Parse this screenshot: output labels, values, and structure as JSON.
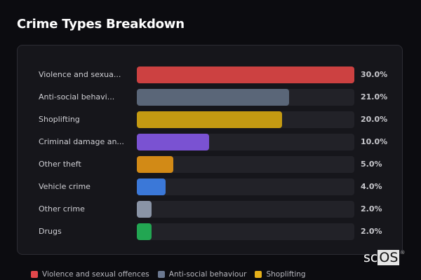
{
  "title": "Crime Types Breakdown",
  "rows": [
    {
      "label": "Violence and sexua...",
      "pct": "30.0%",
      "value": 30.0,
      "color": "#cc4141"
    },
    {
      "label": "Anti-social behavi...",
      "pct": "21.0%",
      "value": 21.0,
      "color": "#5a6678"
    },
    {
      "label": "Shoplifting",
      "pct": "20.0%",
      "value": 20.0,
      "color": "#c49a12"
    },
    {
      "label": "Criminal damage an...",
      "pct": "10.0%",
      "value": 10.0,
      "color": "#7a52d2"
    },
    {
      "label": "Other theft",
      "pct": "5.0%",
      "value": 5.0,
      "color": "#d28a16"
    },
    {
      "label": "Vehicle crime",
      "pct": "4.0%",
      "value": 4.0,
      "color": "#3b78d8"
    },
    {
      "label": "Other crime",
      "pct": "2.0%",
      "value": 2.0,
      "color": "#8a94a6"
    },
    {
      "label": "Drugs",
      "pct": "2.0%",
      "value": 2.0,
      "color": "#22a652"
    }
  ],
  "legend": [
    {
      "label": "Violence and sexual offences",
      "color": "#e2474b"
    },
    {
      "label": "Anti-social behaviour",
      "color": "#6b7890"
    },
    {
      "label": "Shoplifting",
      "color": "#e5b019"
    }
  ],
  "logo": {
    "sc": "sc",
    "os": "OS",
    "reg": "®"
  },
  "chart_data": {
    "type": "bar",
    "orientation": "horizontal",
    "title": "Crime Types Breakdown",
    "categories": [
      "Violence and sexual offences",
      "Anti-social behaviour",
      "Shoplifting",
      "Criminal damage and arson",
      "Other theft",
      "Vehicle crime",
      "Other crime",
      "Drugs"
    ],
    "values": [
      30.0,
      21.0,
      20.0,
      10.0,
      5.0,
      4.0,
      2.0,
      2.0
    ],
    "unit": "%",
    "xlim": [
      0,
      30
    ],
    "grid": false,
    "legend_position": "bottom",
    "legend": [
      "Violence and sexual offences",
      "Anti-social behaviour",
      "Shoplifting"
    ]
  }
}
